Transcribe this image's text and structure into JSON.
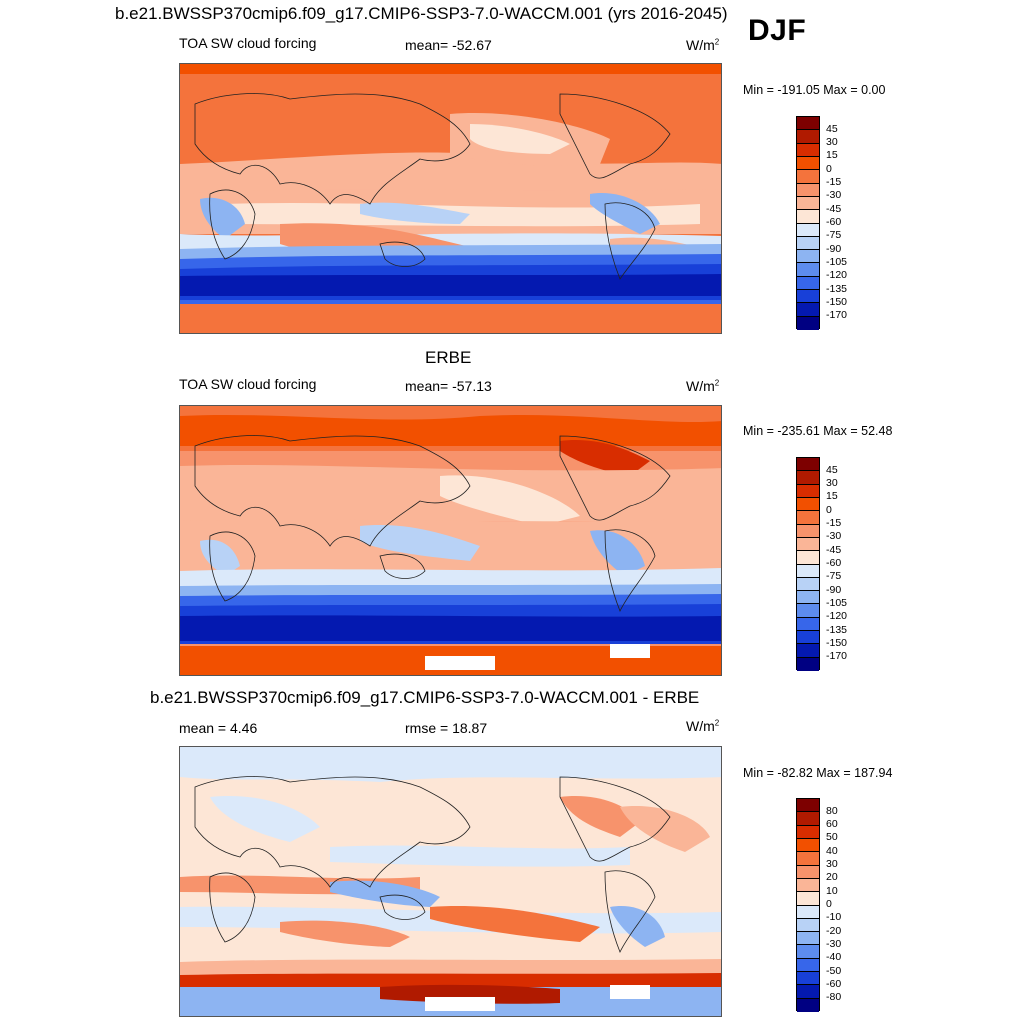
{
  "main_title": "b.e21.BWSSP370cmip6.f09_g17.CMIP6-SSP3-7.0-WACCM.001 (yrs 2016-2045)",
  "season": "DJF",
  "panels": [
    {
      "title": "",
      "left_label": "TOA SW cloud forcing",
      "center_label": "mean= -52.67",
      "units": "W/m",
      "units_sup": "2",
      "minmax": "Min = -191.05 Max =   0.00",
      "colorbar_labels": [
        "45",
        "30",
        "15",
        "0",
        "-15",
        "-30",
        "-45",
        "-60",
        "-75",
        "-90",
        "-105",
        "-120",
        "-135",
        "-150",
        "-170"
      ],
      "colors": [
        "#7d0000",
        "#b01a00",
        "#d82d00",
        "#f25000",
        "#f4733c",
        "#f7936c",
        "#fab597",
        "#fde6d6",
        "#dbe9fa",
        "#b8d2f6",
        "#8db4f2",
        "#5d8cee",
        "#3766ea",
        "#1840d8",
        "#0419b0",
        "#000082"
      ]
    },
    {
      "title": "ERBE",
      "left_label": "TOA SW cloud forcing",
      "center_label": "mean= -57.13",
      "units": "W/m",
      "units_sup": "2",
      "minmax": "Min = -235.61 Max =  52.48",
      "colorbar_labels": [
        "45",
        "30",
        "15",
        "0",
        "-15",
        "-30",
        "-45",
        "-60",
        "-75",
        "-90",
        "-105",
        "-120",
        "-135",
        "-150",
        "-170"
      ],
      "colors": [
        "#7d0000",
        "#b01a00",
        "#d82d00",
        "#f25000",
        "#f4733c",
        "#f7936c",
        "#fab597",
        "#fde6d6",
        "#dbe9fa",
        "#b8d2f6",
        "#8db4f2",
        "#5d8cee",
        "#3766ea",
        "#1840d8",
        "#0419b0",
        "#000082"
      ]
    },
    {
      "title": "b.e21.BWSSP370cmip6.f09_g17.CMIP6-SSP3-7.0-WACCM.001 - ERBE",
      "left_label": "mean =   4.46",
      "center_label": "rmse =  18.87",
      "units": "W/m",
      "units_sup": "2",
      "minmax": "Min = -82.82 Max = 187.94",
      "colorbar_labels": [
        "80",
        "60",
        "50",
        "40",
        "30",
        "20",
        "10",
        "0",
        "-10",
        "-20",
        "-30",
        "-40",
        "-50",
        "-60",
        "-80"
      ],
      "colors": [
        "#7d0000",
        "#b01a00",
        "#d82d00",
        "#f25000",
        "#f4733c",
        "#f7936c",
        "#fab597",
        "#fde6d6",
        "#dbe9fa",
        "#b8d2f6",
        "#8db4f2",
        "#5d8cee",
        "#3766ea",
        "#1840d8",
        "#0419b0",
        "#000082"
      ]
    }
  ]
}
